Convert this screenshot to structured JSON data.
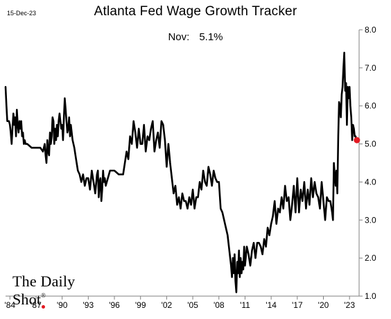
{
  "date_stamp": "15-Dec-23",
  "note": {
    "label": "Nov:",
    "value": "5.1%"
  },
  "logo_text": "The Daily Shot",
  "logo_mark": "®",
  "colors": {
    "line": "#000000",
    "highlight": "#e31b23",
    "axis": "#808080"
  },
  "chart_data": {
    "type": "line",
    "title": "Atlanta Fed Wage Growth Tracker",
    "xlabel": "",
    "ylabel": "",
    "ylim": [
      1.0,
      8.0
    ],
    "xlim": [
      1983.5,
      2024.1
    ],
    "y_axis_side": "right",
    "yticks": [
      {
        "value": 1.0,
        "label": "1.0"
      },
      {
        "value": 2.0,
        "label": "2.0"
      },
      {
        "value": 3.0,
        "label": "3.0"
      },
      {
        "value": 4.0,
        "label": "4.0"
      },
      {
        "value": 5.0,
        "label": "5.0"
      },
      {
        "value": 6.0,
        "label": "6.0"
      },
      {
        "value": 7.0,
        "label": "7.0"
      },
      {
        "value": 8.0,
        "label": "8.0"
      }
    ],
    "xticks": [
      {
        "value": 1984,
        "label": "'84"
      },
      {
        "value": 1987,
        "label": "'87"
      },
      {
        "value": 1990,
        "label": "'90"
      },
      {
        "value": 1993,
        "label": "'93"
      },
      {
        "value": 1996,
        "label": "'96"
      },
      {
        "value": 1999,
        "label": "'99"
      },
      {
        "value": 2002,
        "label": "'02"
      },
      {
        "value": 2005,
        "label": "'05"
      },
      {
        "value": 2008,
        "label": "'08"
      },
      {
        "value": 2011,
        "label": "'11"
      },
      {
        "value": 2014,
        "label": "'14"
      },
      {
        "value": 2017,
        "label": "'17"
      },
      {
        "value": 2020,
        "label": "'20"
      },
      {
        "value": 2023,
        "label": "'23"
      }
    ],
    "grid": false,
    "legend": "none",
    "series": [
      {
        "x": [
          1983.5,
          1983.6,
          1983.7,
          1983.9,
          1984.0,
          1984.1,
          1984.2,
          1984.3,
          1984.4,
          1984.5,
          1984.6,
          1984.7,
          1984.8,
          1984.9,
          1985.0,
          1985.1,
          1985.2,
          1985.3,
          1985.4,
          1985.5,
          1985.6,
          1985.7,
          1985.8,
          1985.9,
          1986.0,
          1986.5,
          1987.0,
          1987.5,
          1987.8,
          1988.0,
          1988.1,
          1988.2,
          1988.3,
          1988.4,
          1988.5,
          1988.6,
          1988.7,
          1988.8,
          1988.9,
          1989.0,
          1989.1,
          1989.2,
          1989.3,
          1989.4,
          1989.5,
          1989.6,
          1989.7,
          1989.8,
          1989.9,
          1990.0,
          1990.1,
          1990.2,
          1990.3,
          1990.4,
          1990.5,
          1990.6,
          1990.7,
          1990.8,
          1990.9,
          1991.0,
          1991.2,
          1991.4,
          1991.6,
          1991.8,
          1992.0,
          1992.2,
          1992.4,
          1992.6,
          1992.8,
          1993.0,
          1993.2,
          1993.4,
          1993.6,
          1993.8,
          1994.0,
          1994.1,
          1994.2,
          1994.3,
          1994.4,
          1994.5,
          1994.6,
          1994.7,
          1994.8,
          1994.9,
          1995.0,
          1995.5,
          1996.0,
          1996.5,
          1997.0,
          1997.2,
          1997.4,
          1997.6,
          1997.8,
          1998.0,
          1998.2,
          1998.4,
          1998.6,
          1998.8,
          1999.0,
          1999.2,
          1999.4,
          1999.6,
          1999.8,
          2000.0,
          2000.2,
          2000.4,
          2000.6,
          2000.8,
          2001.0,
          2001.2,
          2001.4,
          2001.6,
          2001.8,
          2002.0,
          2002.2,
          2002.4,
          2002.6,
          2002.8,
          2003.0,
          2003.2,
          2003.4,
          2003.6,
          2003.8,
          2004.0,
          2004.2,
          2004.4,
          2004.6,
          2004.8,
          2005.0,
          2005.2,
          2005.4,
          2005.6,
          2005.8,
          2006.0,
          2006.2,
          2006.4,
          2006.6,
          2006.8,
          2007.0,
          2007.2,
          2007.4,
          2007.6,
          2007.8,
          2008.0,
          2008.2,
          2008.4,
          2008.6,
          2008.8,
          2009.0,
          2009.2,
          2009.4,
          2009.5,
          2009.6,
          2009.7,
          2009.8,
          2009.9,
          2010.0,
          2010.1,
          2010.2,
          2010.3,
          2010.4,
          2010.5,
          2010.6,
          2010.7,
          2010.8,
          2010.9,
          2011.0,
          2011.2,
          2011.4,
          2011.6,
          2011.8,
          2012.0,
          2012.2,
          2012.4,
          2012.6,
          2012.8,
          2013.0,
          2013.2,
          2013.4,
          2013.6,
          2013.8,
          2014.0,
          2014.2,
          2014.4,
          2014.6,
          2014.8,
          2015.0,
          2015.2,
          2015.4,
          2015.6,
          2015.8,
          2016.0,
          2016.2,
          2016.4,
          2016.6,
          2016.8,
          2017.0,
          2017.2,
          2017.4,
          2017.6,
          2017.8,
          2018.0,
          2018.2,
          2018.4,
          2018.6,
          2018.8,
          2019.0,
          2019.2,
          2019.4,
          2019.6,
          2019.8,
          2020.0,
          2020.2,
          2020.4,
          2020.6,
          2020.8,
          2021.0,
          2021.1,
          2021.2,
          2021.3,
          2021.4,
          2021.5,
          2021.6,
          2021.7,
          2021.8,
          2021.9,
          2022.0,
          2022.1,
          2022.2,
          2022.3,
          2022.4,
          2022.5,
          2022.6,
          2022.7,
          2022.8,
          2022.9,
          2023.0,
          2023.1,
          2023.2,
          2023.3,
          2023.4,
          2023.5,
          2023.6,
          2023.7,
          2023.8,
          2023.85
        ],
        "y": [
          6.5,
          6.0,
          5.6,
          5.6,
          5.5,
          5.3,
          5.0,
          5.4,
          5.8,
          5.5,
          5.7,
          5.2,
          5.9,
          5.5,
          5.3,
          5.6,
          5.4,
          5.6,
          5.2,
          5.3,
          5.0,
          5.1,
          5.0,
          5.0,
          5.0,
          4.9,
          4.9,
          4.9,
          4.8,
          5.0,
          4.7,
          4.5,
          5.1,
          4.8,
          4.7,
          5.3,
          5.0,
          5.2,
          5.7,
          5.6,
          5.0,
          5.4,
          5.1,
          5.5,
          5.2,
          5.6,
          5.8,
          5.6,
          5.4,
          5.5,
          5.1,
          5.7,
          6.2,
          5.9,
          5.6,
          5.3,
          5.4,
          5.7,
          5.2,
          5.5,
          5.1,
          4.9,
          4.6,
          4.3,
          4.2,
          4.0,
          4.2,
          3.9,
          4.1,
          4.1,
          3.8,
          4.3,
          4.0,
          3.7,
          4.2,
          4.3,
          3.6,
          4.0,
          4.1,
          3.5,
          3.8,
          4.3,
          4.0,
          4.1,
          3.9,
          4.3,
          4.3,
          4.2,
          4.2,
          4.5,
          4.8,
          4.6,
          5.2,
          5.0,
          5.6,
          5.3,
          4.9,
          5.4,
          5.0,
          5.0,
          5.5,
          4.8,
          5.2,
          5.1,
          5.4,
          5.6,
          4.8,
          5.1,
          5.3,
          4.9,
          5.6,
          5.5,
          5.1,
          4.4,
          5.0,
          4.5,
          4.1,
          3.7,
          3.9,
          3.4,
          3.6,
          3.3,
          3.7,
          3.5,
          3.5,
          3.3,
          3.6,
          3.4,
          3.8,
          3.3,
          3.6,
          3.6,
          4.0,
          3.8,
          4.3,
          4.0,
          3.9,
          4.4,
          4.2,
          3.9,
          4.3,
          4.1,
          4.0,
          4.0,
          3.3,
          3.2,
          3.0,
          2.8,
          2.6,
          2.2,
          1.8,
          1.5,
          2.0,
          1.6,
          2.1,
          1.4,
          1.1,
          1.9,
          1.6,
          2.2,
          1.5,
          2.0,
          1.6,
          1.9,
          1.7,
          2.3,
          1.8,
          2.3,
          2.1,
          1.8,
          2.2,
          2.4,
          2.0,
          2.4,
          2.4,
          2.3,
          2.1,
          2.5,
          2.3,
          2.8,
          2.6,
          2.9,
          3.1,
          3.5,
          2.9,
          3.3,
          3.2,
          3.6,
          3.3,
          3.9,
          3.5,
          3.6,
          3.0,
          3.4,
          3.9,
          3.2,
          4.1,
          3.2,
          3.8,
          3.5,
          4.0,
          3.3,
          3.8,
          3.4,
          4.1,
          3.6,
          4.0,
          3.7,
          3.6,
          3.3,
          4.0,
          3.5,
          3.0,
          3.6,
          3.5,
          3.5,
          3.2,
          3.0,
          4.5,
          4.2,
          3.9,
          4.3,
          3.7,
          5.2,
          6.1,
          6.0,
          5.7,
          6.3,
          6.5,
          7.0,
          7.4,
          6.4,
          6.6,
          5.5,
          6.5,
          6.2,
          6.5,
          6.0,
          5.7,
          5.1,
          5.5,
          5.4,
          5.2,
          5.2,
          5.1,
          5.1
        ]
      }
    ],
    "highlight_point": {
      "x": 2023.85,
      "y": 5.1
    }
  }
}
